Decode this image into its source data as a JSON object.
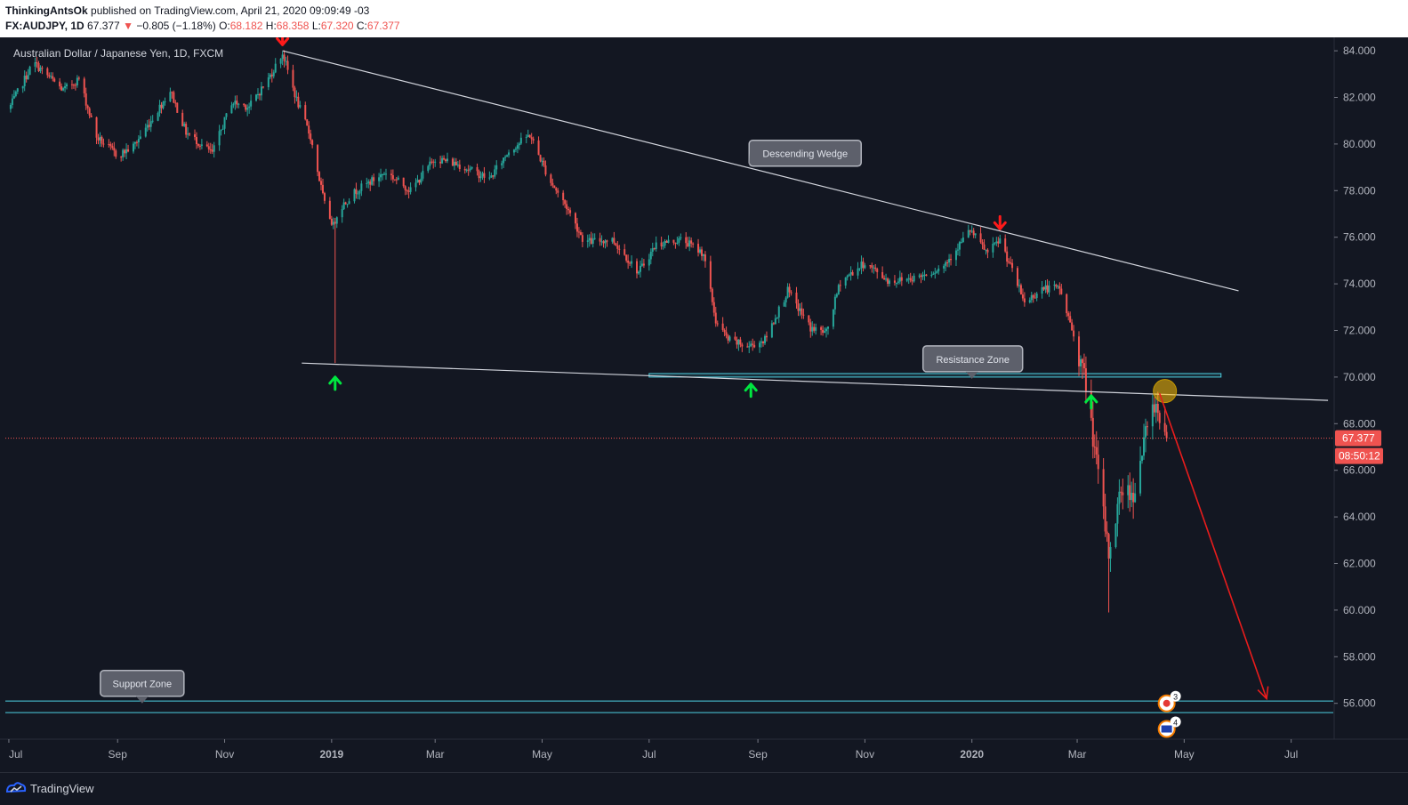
{
  "header": {
    "author": "ThinkingAntsOk",
    "published": "published on TradingView.com, April 21, 2020 09:09:49 -03",
    "symbol": "FX:AUDJPY, 1D",
    "last": "67.377",
    "change_arrow": "▼",
    "change": "−0.805 (−1.18%)",
    "o_label": "O:",
    "o_value": "68.182",
    "h_label": "H:",
    "h_value": "68.358",
    "l_label": "L:",
    "l_value": "67.320",
    "c_label": "C:",
    "c_value": "67.377"
  },
  "footer": {
    "brand": "TradingView",
    "logo_icon": "tradingview-logo-icon"
  },
  "chart_data": {
    "type": "candlestick",
    "title": "Australian Dollar / Japanese Yen, 1D, FXCM",
    "y_axis": {
      "range": [
        54.5,
        84.5
      ],
      "ticks": [
        56,
        58,
        60,
        62,
        64,
        66,
        68,
        70,
        72,
        74,
        76,
        78,
        80,
        82,
        84
      ],
      "tick_labels": [
        "56.000",
        "58.000",
        "60.000",
        "62.000",
        "64.000",
        "66.000",
        "68.000",
        "70.000",
        "72.000",
        "74.000",
        "76.000",
        "78.000",
        "80.000",
        "82.000",
        "84.000"
      ]
    },
    "x_axis": {
      "range": [
        "2018-06-29",
        "2020-07-25"
      ],
      "ticks": [
        {
          "date": "2018-07-01",
          "label": "Jul",
          "bold": false
        },
        {
          "date": "2018-09-01",
          "label": "Sep",
          "bold": false
        },
        {
          "date": "2018-11-01",
          "label": "Nov",
          "bold": false
        },
        {
          "date": "2019-01-01",
          "label": "2019",
          "bold": true
        },
        {
          "date": "2019-03-01",
          "label": "Mar",
          "bold": false
        },
        {
          "date": "2019-05-01",
          "label": "May",
          "bold": false
        },
        {
          "date": "2019-07-01",
          "label": "Jul",
          "bold": false
        },
        {
          "date": "2019-09-01",
          "label": "Sep",
          "bold": false
        },
        {
          "date": "2019-11-01",
          "label": "Nov",
          "bold": false
        },
        {
          "date": "2020-01-01",
          "label": "2020",
          "bold": true
        },
        {
          "date": "2020-03-01",
          "label": "Mar",
          "bold": false
        },
        {
          "date": "2020-05-01",
          "label": "May",
          "bold": false
        },
        {
          "date": "2020-07-01",
          "label": "Jul",
          "bold": false
        }
      ]
    },
    "price_path": [
      [
        "2018-07-01",
        81.5
      ],
      [
        "2018-07-15",
        83.5
      ],
      [
        "2018-08-01",
        82.3
      ],
      [
        "2018-08-10",
        82.8
      ],
      [
        "2018-08-20",
        80.3
      ],
      [
        "2018-09-01",
        79.5
      ],
      [
        "2018-09-10",
        79.9
      ],
      [
        "2018-09-20",
        81.0
      ],
      [
        "2018-10-01",
        82.3
      ],
      [
        "2018-10-10",
        80.5
      ],
      [
        "2018-10-25",
        79.6
      ],
      [
        "2018-11-05",
        81.8
      ],
      [
        "2018-11-15",
        81.6
      ],
      [
        "2018-11-26",
        82.8
      ],
      [
        "2018-12-04",
        83.9
      ],
      [
        "2018-12-12",
        81.9
      ],
      [
        "2018-12-20",
        80.3
      ],
      [
        "2018-12-28",
        77.4
      ],
      [
        "2019-01-02",
        76.5
      ],
      [
        "2019-01-05",
        77.2
      ],
      [
        "2019-01-15",
        78.0
      ],
      [
        "2019-02-01",
        78.8
      ],
      [
        "2019-02-15",
        78.0
      ],
      [
        "2019-03-01",
        79.4
      ],
      [
        "2019-03-15",
        79.1
      ],
      [
        "2019-04-01",
        78.5
      ],
      [
        "2019-04-12",
        79.7
      ],
      [
        "2019-04-24",
        80.4
      ],
      [
        "2019-05-05",
        78.5
      ],
      [
        "2019-05-15",
        77.3
      ],
      [
        "2019-05-25",
        75.8
      ],
      [
        "2019-06-10",
        75.9
      ],
      [
        "2019-06-25",
        74.5
      ],
      [
        "2019-07-05",
        75.7
      ],
      [
        "2019-07-20",
        75.9
      ],
      [
        "2019-08-01",
        75.3
      ],
      [
        "2019-08-08",
        72.4
      ],
      [
        "2019-08-15",
        71.6
      ],
      [
        "2019-08-26",
        71.3
      ],
      [
        "2019-09-05",
        71.6
      ],
      [
        "2019-09-18",
        73.7
      ],
      [
        "2019-10-01",
        72.1
      ],
      [
        "2019-10-10",
        71.9
      ],
      [
        "2019-10-18",
        74.1
      ],
      [
        "2019-11-01",
        74.9
      ],
      [
        "2019-11-15",
        74.1
      ],
      [
        "2019-12-01",
        74.3
      ],
      [
        "2019-12-15",
        74.7
      ],
      [
        "2019-12-31",
        76.3
      ],
      [
        "2020-01-10",
        75.3
      ],
      [
        "2020-01-17",
        75.9
      ],
      [
        "2020-01-31",
        73.2
      ],
      [
        "2020-02-10",
        73.8
      ],
      [
        "2020-02-20",
        73.8
      ],
      [
        "2020-02-28",
        71.8
      ],
      [
        "2020-03-06",
        69.7
      ],
      [
        "2020-03-12",
        66.3
      ],
      [
        "2020-03-19",
        62.4
      ],
      [
        "2020-03-26",
        65.2
      ],
      [
        "2020-04-02",
        65.0
      ],
      [
        "2020-04-09",
        67.5
      ],
      [
        "2020-04-14",
        68.9
      ],
      [
        "2020-04-17",
        68.4
      ],
      [
        "2020-04-21",
        67.377
      ]
    ],
    "extreme_wicks": [
      {
        "date": "2019-01-03",
        "low": 70.6
      },
      {
        "date": "2020-03-19",
        "low": 59.9
      }
    ],
    "last_price": 67.377,
    "last_price_label": "67.377",
    "countdown_label": "08:50:12",
    "annotations": {
      "descending_wedge": {
        "label": "Descending Wedge",
        "anchor": [
          "2019-08-27",
          78.9
        ]
      },
      "resistance_zone": {
        "label": "Resistance Zone",
        "anchor": [
          "2020-01-01",
          70.0
        ]
      },
      "support_zone": {
        "label": "Support Zone",
        "anchor": [
          "2018-09-15",
          56.0
        ]
      }
    },
    "upper_trendline": [
      [
        "2018-12-04",
        84.0
      ],
      [
        "2020-06-01",
        73.7
      ]
    ],
    "lower_trendline": [
      [
        "2018-12-15",
        70.6
      ],
      [
        "2020-07-22",
        69.0
      ]
    ],
    "resistance_band": {
      "from": "2019-07-01",
      "to": "2020-05-22",
      "low": 70.0,
      "high": 70.15
    },
    "support_band": {
      "low": 55.6,
      "high": 56.1
    },
    "projection_arrow": [
      [
        "2020-04-17",
        69.3
      ],
      [
        "2020-06-17",
        56.2
      ]
    ],
    "highlight_circle": [
      "2020-04-20",
      69.4
    ],
    "down_markers": [
      [
        "2018-12-04",
        84.6
      ],
      [
        "2020-01-17",
        76.7
      ]
    ],
    "up_markers": [
      [
        "2019-01-03",
        70.0
      ],
      [
        "2019-08-28",
        69.7
      ],
      [
        "2020-03-09",
        69.2
      ]
    ],
    "event_badges": [
      {
        "date": "2020-04-20",
        "price": 56.0,
        "count": "3",
        "flag": "japan-flag-icon"
      },
      {
        "date": "2020-04-20",
        "price": 54.9,
        "count": "4",
        "flag": "australia-flag-icon"
      }
    ],
    "colors": {
      "background": "#131722",
      "up": "#26a69a",
      "down": "#ef5350",
      "zone_line": "#4dd0e1",
      "trendline": "#d1d4dc",
      "arrow": "#e91c1c",
      "marker_up": "#00e640",
      "marker_down": "#ff1a1a"
    }
  }
}
